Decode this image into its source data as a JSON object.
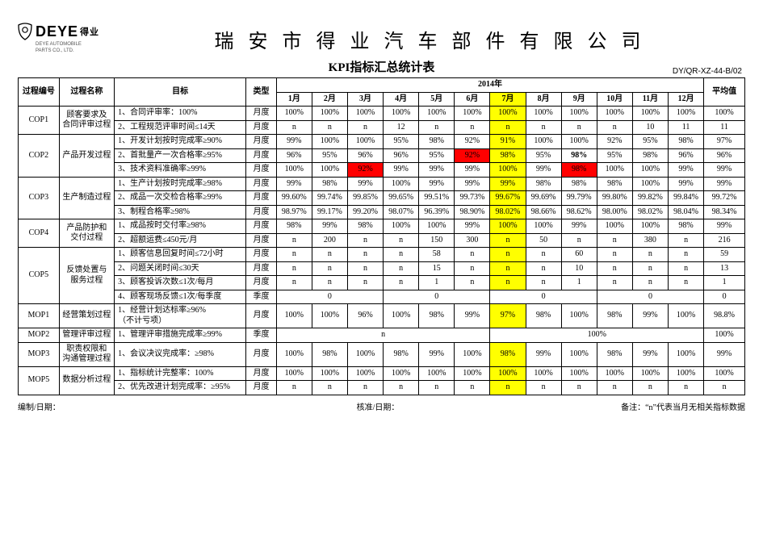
{
  "logo": {
    "brand": "DEYE",
    "hanzi": "得业",
    "sub1": "DEYE AUTOMOBILE",
    "sub2": "PARTS CO., LTD."
  },
  "company": "瑞安市得业汽车部件有限公司",
  "report_title": "KPI指标汇总统计表",
  "doc_code": "DY/QR-XZ-44-B/02",
  "year_label": "2014年",
  "headers": {
    "code": "过程编号",
    "name": "过程名称",
    "target": "目标",
    "type": "类型",
    "avg": "平均值",
    "months": [
      "1月",
      "2月",
      "3月",
      "4月",
      "5月",
      "6月",
      "7月",
      "8月",
      "9月",
      "10月",
      "11月",
      "12月"
    ]
  },
  "highlight": {
    "month_index": 6,
    "color_yellow": "#ffff00",
    "color_red": "#ff0000"
  },
  "rows": [
    {
      "code": "COP1",
      "name": "顾客要求及\n合同评审过程",
      "targets": [
        {
          "label": "1、合同评审率：100%",
          "type": "月度",
          "vals": [
            "100%",
            "100%",
            "100%",
            "100%",
            "100%",
            "100%",
            "100%",
            "100%",
            "100%",
            "100%",
            "100%",
            "100%"
          ],
          "avg": "100%"
        },
        {
          "label": "2、工程规范评审时间≤14天",
          "type": "月度",
          "vals": [
            "n",
            "n",
            "n",
            "12",
            "n",
            "n",
            "n",
            "n",
            "n",
            "n",
            "10",
            "11"
          ],
          "avg": "11"
        }
      ]
    },
    {
      "code": "COP2",
      "name": "产品开发过程",
      "targets": [
        {
          "label": "1、开发计划按时完成率≥90%",
          "type": "月度",
          "vals": [
            "99%",
            "100%",
            "100%",
            "95%",
            "98%",
            "92%",
            "91%",
            "100%",
            "100%",
            "92%",
            "95%",
            "98%"
          ],
          "avg": "97%"
        },
        {
          "label": "2、首批量产一次合格率≥95%",
          "type": "月度",
          "vals": [
            "96%",
            "95%",
            "96%",
            "96%",
            "95%",
            "92%",
            "98%",
            "95%",
            "98%",
            "95%",
            "98%",
            "96%"
          ],
          "avg": "96%",
          "red_idx": [
            5
          ],
          "bold_idx": [
            8
          ]
        },
        {
          "label": "3、技术资料准确率≥99%",
          "type": "月度",
          "vals": [
            "100%",
            "100%",
            "92%",
            "99%",
            "99%",
            "99%",
            "100%",
            "99%",
            "98%",
            "100%",
            "100%",
            "99%"
          ],
          "avg": "99%",
          "red_idx": [
            2,
            8
          ]
        }
      ]
    },
    {
      "code": "COP3",
      "name": "生产制造过程",
      "targets": [
        {
          "label": "1、生产计划按时完成率≥98%",
          "type": "月度",
          "vals": [
            "99%",
            "98%",
            "99%",
            "100%",
            "99%",
            "99%",
            "99%",
            "98%",
            "98%",
            "98%",
            "100%",
            "99%"
          ],
          "avg": "99%"
        },
        {
          "label": "2、成品一次交检合格率≥99%",
          "type": "月度",
          "vals": [
            "99.60%",
            "99.74%",
            "99.85%",
            "99.65%",
            "99.51%",
            "99.73%",
            "99.67%",
            "99.69%",
            "99.79%",
            "99.80%",
            "99.82%",
            "99.84%"
          ],
          "avg": "99.72%"
        },
        {
          "label": "3、制程合格率≥98%",
          "type": "月度",
          "vals": [
            "98.97%",
            "99.17%",
            "99.20%",
            "98.07%",
            "96.39%",
            "98.90%",
            "98.02%",
            "98.66%",
            "98.62%",
            "98.00%",
            "98.02%",
            "98.04%"
          ],
          "avg": "98.34%"
        }
      ]
    },
    {
      "code": "COP4",
      "name": "产品防护和\n交付过程",
      "targets": [
        {
          "label": "1、成品按时交付率≥98%",
          "type": "月度",
          "vals": [
            "98%",
            "99%",
            "98%",
            "100%",
            "100%",
            "99%",
            "100%",
            "100%",
            "99%",
            "100%",
            "100%",
            "98%"
          ],
          "avg": "99%"
        },
        {
          "label": "2、超额运费≤450元/月",
          "type": "月度",
          "vals": [
            "n",
            "200",
            "n",
            "n",
            "150",
            "300",
            "n",
            "50",
            "n",
            "n",
            "380",
            "n"
          ],
          "avg": "216"
        }
      ]
    },
    {
      "code": "COP5",
      "name": "反馈处置与\n服务过程",
      "targets": [
        {
          "label": "1、顾客信息回复时间≤72小时",
          "type": "月度",
          "vals": [
            "n",
            "n",
            "n",
            "n",
            "58",
            "n",
            "n",
            "n",
            "60",
            "n",
            "n",
            "n"
          ],
          "avg": "59"
        },
        {
          "label": "2、问题关闭时间≤30天",
          "type": "月度",
          "vals": [
            "n",
            "n",
            "n",
            "n",
            "15",
            "n",
            "n",
            "n",
            "10",
            "n",
            "n",
            "n"
          ],
          "avg": "13"
        },
        {
          "label": "3、顾客投诉次数≤1次/每月",
          "type": "月度",
          "vals": [
            "n",
            "n",
            "n",
            "n",
            "1",
            "n",
            "n",
            "n",
            "1",
            "n",
            "n",
            "n"
          ],
          "avg": "1"
        },
        {
          "label": "4、顾客现场反馈≤1次/每季度",
          "type": "季度",
          "quarter": true,
          "qvals": [
            "0",
            "0",
            "0",
            "0"
          ],
          "avg": "0"
        }
      ]
    },
    {
      "code": "MOP1",
      "name": "经营策划过程",
      "targets": [
        {
          "label": "1、经营计划达标率≥96%\n（不计亏项）",
          "type": "月度",
          "vals": [
            "100%",
            "100%",
            "96%",
            "100%",
            "98%",
            "99%",
            "97%",
            "98%",
            "100%",
            "98%",
            "99%",
            "100%"
          ],
          "avg": "98.8%"
        }
      ]
    },
    {
      "code": "MOP2",
      "name": "管理评审过程",
      "targets": [
        {
          "label": "1、管理评审措施完成率≥99%",
          "type": "季度",
          "half": true,
          "hvals": [
            "n",
            "100%"
          ],
          "avg": "100%"
        }
      ]
    },
    {
      "code": "MOP3",
      "name": "职责权限和\n沟通管理过程",
      "targets": [
        {
          "label": "1、会议决议完成率：≥98%",
          "type": "月度",
          "vals": [
            "100%",
            "98%",
            "100%",
            "98%",
            "99%",
            "100%",
            "98%",
            "99%",
            "100%",
            "98%",
            "99%",
            "100%"
          ],
          "avg": "99%"
        }
      ]
    },
    {
      "code": "MOP5",
      "name": "数据分析过程",
      "targets": [
        {
          "label": "1、指标统计完整率：100%",
          "type": "月度",
          "vals": [
            "100%",
            "100%",
            "100%",
            "100%",
            "100%",
            "100%",
            "100%",
            "100%",
            "100%",
            "100%",
            "100%",
            "100%"
          ],
          "avg": "100%"
        },
        {
          "label": "2、优先改进计划完成率：≥95%",
          "type": "月度",
          "vals": [
            "n",
            "n",
            "n",
            "n",
            "n",
            "n",
            "n",
            "n",
            "n",
            "n",
            "n",
            "n"
          ],
          "avg": "n"
        }
      ]
    }
  ],
  "footer": {
    "left": "编制/日期：",
    "mid": "核准/日期：",
    "right": "备注：“n”代表当月无相关指标数据"
  }
}
